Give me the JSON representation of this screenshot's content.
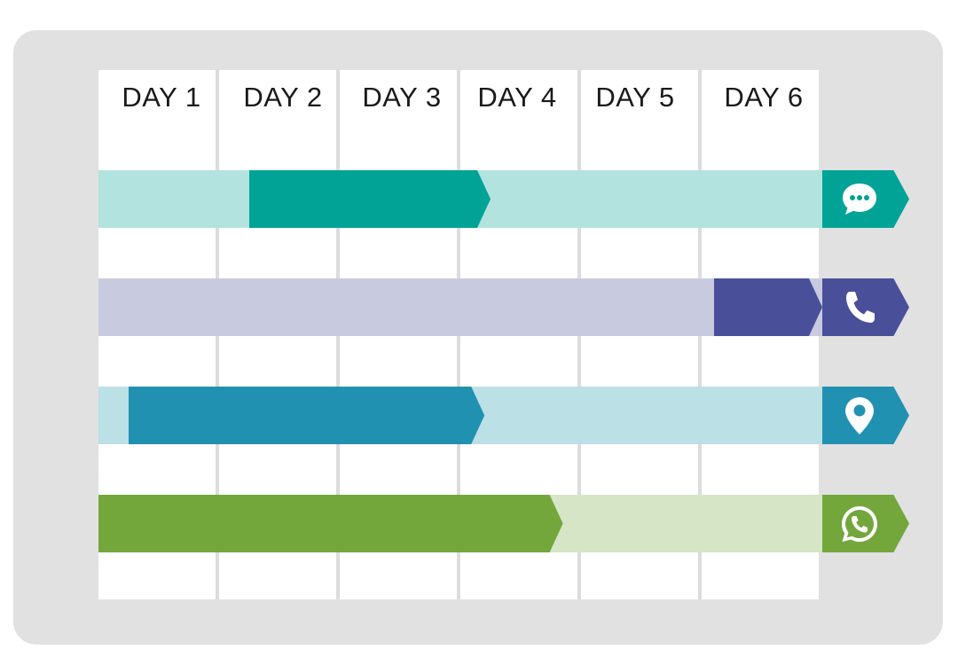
{
  "days": [
    "DAY 1",
    "DAY 2",
    "DAY 3",
    "DAY 4",
    "DAY 5",
    "DAY 6"
  ],
  "rows": [
    {
      "channel": "chat",
      "icon": "chat-bubble-icon",
      "light": "#b3e3df",
      "dark": "#00a396",
      "badge": "#00a396",
      "start_day": 2.25,
      "end_day": 4.25
    },
    {
      "channel": "phone",
      "icon": "phone-icon",
      "light": "#c8cbe0",
      "dark": "#4a4f9a",
      "badge": "#4a4f9a",
      "start_day": 6.1,
      "end_day": 7.0
    },
    {
      "channel": "location",
      "icon": "map-pin-icon",
      "light": "#bbe0e6",
      "dark": "#2191b1",
      "badge": "#2191b1",
      "start_day": 1.25,
      "end_day": 4.2
    },
    {
      "channel": "whatsapp",
      "icon": "whatsapp-icon",
      "light": "#d6e5c6",
      "dark": "#73a73c",
      "badge": "#73a73c",
      "start_day": 1.0,
      "end_day": 4.85
    }
  ]
}
